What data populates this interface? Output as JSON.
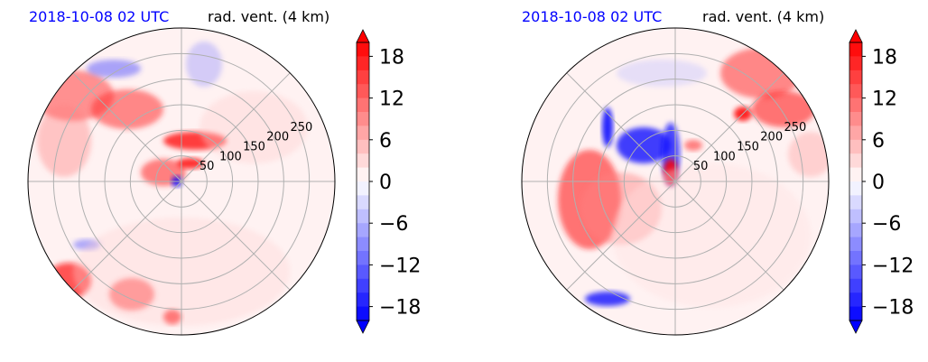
{
  "chart_data": [
    {
      "type": "heatmap",
      "projection": "polar",
      "title_left": "2018-10-08 02 UTC",
      "title_right": "rad. vent. (4 km)",
      "radial_ticks": [
        50,
        100,
        150,
        200,
        250
      ],
      "radial_max": 300,
      "grid": true,
      "colorbar": {
        "ticks": [
          18,
          12,
          6,
          0,
          -6,
          -12,
          -18
        ],
        "tick_labels": [
          "18",
          "12",
          "6",
          "0",
          "−6",
          "−12",
          "−18"
        ],
        "range": [
          -20,
          20
        ],
        "extend": "both",
        "colormap": "bwr"
      },
      "color_positive": "#ff0000",
      "color_negative": "#0000ff",
      "color_zero": "#ffffff"
    },
    {
      "type": "heatmap",
      "projection": "polar",
      "title_left": "2018-10-08 02 UTC",
      "title_right": "rad. vent. (4 km)",
      "radial_ticks": [
        50,
        100,
        150,
        200,
        250
      ],
      "radial_max": 300,
      "grid": true,
      "colorbar": {
        "ticks": [
          18,
          12,
          6,
          0,
          -6,
          -12,
          -18
        ],
        "tick_labels": [
          "18",
          "12",
          "6",
          "0",
          "−6",
          "−12",
          "−18"
        ],
        "range": [
          -20,
          20
        ],
        "extend": "both",
        "colormap": "bwr"
      },
      "color_positive": "#ff0000",
      "color_negative": "#0000ff",
      "color_zero": "#ffffff"
    }
  ]
}
